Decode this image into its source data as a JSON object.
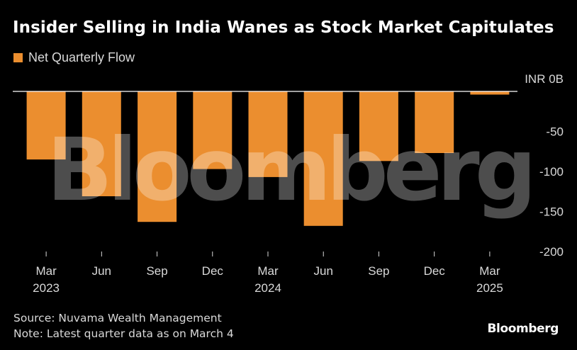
{
  "colors": {
    "bar": "#EB8E2F",
    "axis": "#ffffff",
    "tick_text": "#d9d9d9",
    "watermark": "#ffffff"
  },
  "chart_data": {
    "type": "bar",
    "title": "Insider Selling in India Wanes as Stock Market Capitulates",
    "legend": {
      "placement": "top-left"
    },
    "series": [
      {
        "name": "Net Quarterly Flow",
        "values": [
          -85,
          -131,
          -163,
          -97,
          -107,
          -168,
          -87,
          -77,
          -4
        ]
      }
    ],
    "categories": [
      "Mar 2023",
      "Jun",
      "Sep",
      "Dec",
      "Mar 2024",
      "Jun",
      "Sep",
      "Dec",
      "Mar 2025"
    ],
    "x_tick_labels": [
      [
        "Mar",
        "2023"
      ],
      [
        "Jun"
      ],
      [
        "Sep"
      ],
      [
        "Dec"
      ],
      [
        "Mar",
        "2024"
      ],
      [
        "Jun"
      ],
      [
        "Sep"
      ],
      [
        "Dec"
      ],
      [
        "Mar",
        "2025"
      ]
    ],
    "y_ticks": [
      {
        "value": 0,
        "label": "INR 0B"
      },
      {
        "value": -50,
        "label": "-50"
      },
      {
        "value": -100,
        "label": "-100"
      },
      {
        "value": -150,
        "label": "-150"
      },
      {
        "value": -200,
        "label": "-200"
      }
    ],
    "ylim": [
      -200,
      0
    ],
    "y_axis_side": "right",
    "grid": false
  },
  "footer": {
    "source": "Source: Nuvama Wealth Management",
    "note": "Note: Latest quarter data as on March 4"
  },
  "brand": "Bloomberg",
  "watermark_text": "Bloomberg"
}
